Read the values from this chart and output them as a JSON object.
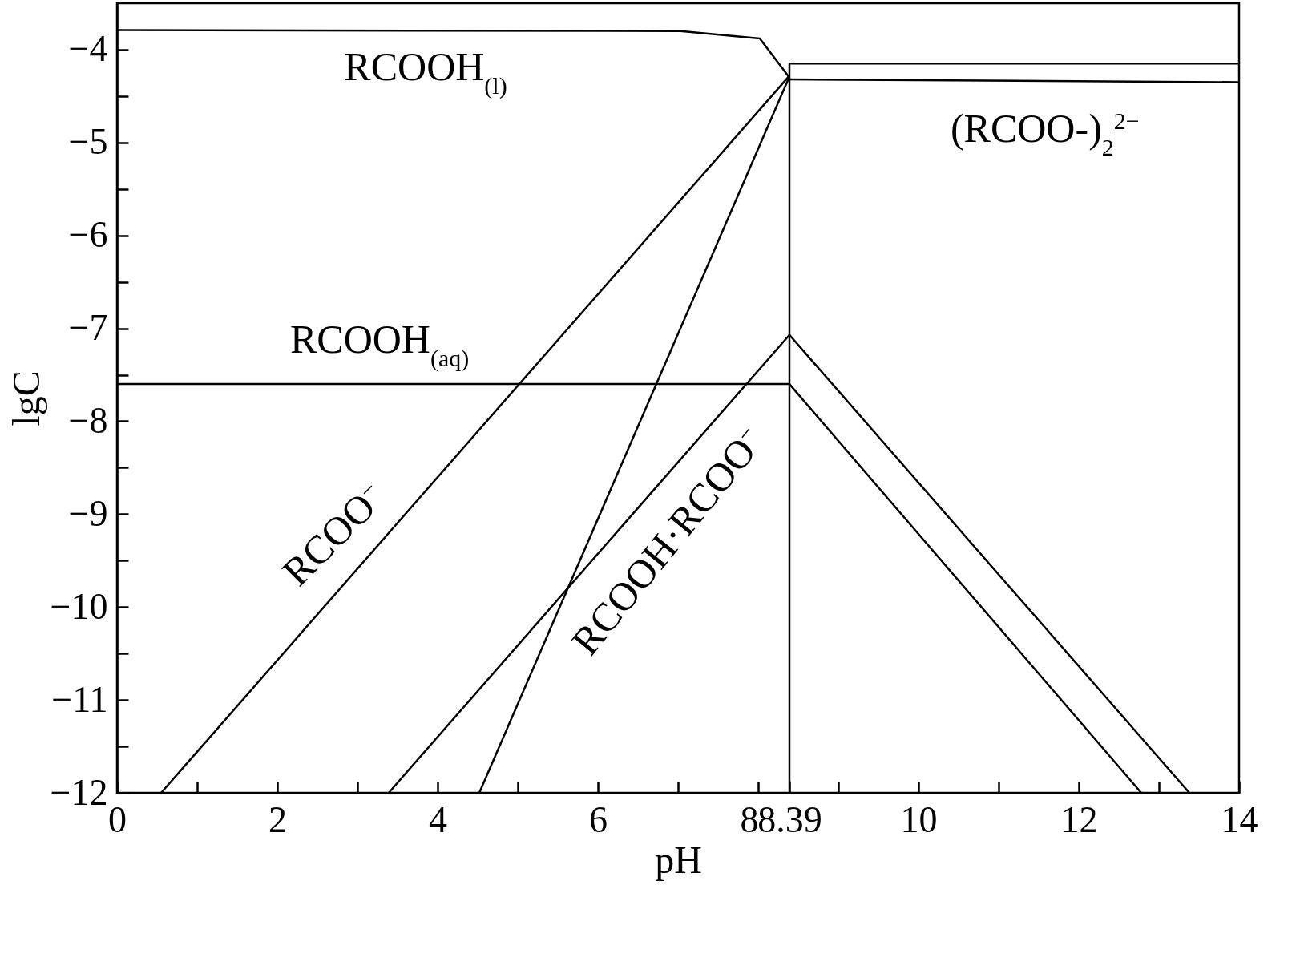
{
  "chart_data": {
    "type": "line",
    "xlabel": "pH",
    "ylabel": "lgC",
    "xlim": [
      0,
      14
    ],
    "ylim": [
      -12,
      -3.5
    ],
    "xticks": [
      0,
      {
        "value": 1,
        "label": null
      },
      2,
      {
        "value": 3,
        "label": null
      },
      4,
      {
        "value": 5,
        "label": null
      },
      6,
      {
        "value": 7,
        "label": null
      },
      8,
      8.39,
      {
        "value": 9,
        "label": null
      },
      10,
      {
        "value": 11,
        "label": null
      },
      12,
      {
        "value": 13,
        "label": null
      },
      14
    ],
    "yticks": [
      {
        "value": -12,
        "label": "−12"
      },
      {
        "value": -11.5,
        "label": null
      },
      {
        "value": -11,
        "label": "−11"
      },
      {
        "value": -10.5,
        "label": null
      },
      {
        "value": -10,
        "label": "−10"
      },
      {
        "value": -9.5,
        "label": null
      },
      {
        "value": -9,
        "label": "−9"
      },
      {
        "value": -8.5,
        "label": null
      },
      {
        "value": -8,
        "label": "−8"
      },
      {
        "value": -7.5,
        "label": null
      },
      {
        "value": -7,
        "label": "−7"
      },
      {
        "value": -6.5,
        "label": null
      },
      {
        "value": -6,
        "label": "−6"
      },
      {
        "value": -5.5,
        "label": null
      },
      {
        "value": -5,
        "label": "−5"
      },
      {
        "value": -4.5,
        "label": null
      },
      {
        "value": -4,
        "label": "−4"
      }
    ],
    "series": [
      {
        "color": "#000000",
        "x": [
          0,
          7.03,
          8.02,
          8.39
        ],
        "values": [
          -3.79,
          -3.8,
          -3.88,
          -4.3
        ]
      },
      {
        "color": "#000000",
        "x": [
          8.39,
          14
        ],
        "values": [
          -4.15,
          -4.15
        ]
      },
      {
        "color": "#000000",
        "x": [
          8.39,
          14
        ],
        "values": [
          -4.32,
          -4.35
        ]
      },
      {
        "color": "#000000",
        "x": [
          8.39,
          8.39
        ],
        "values": [
          -12,
          -4.15
        ]
      },
      {
        "color": "#000000",
        "x": [
          0.55,
          8.39
        ],
        "values": [
          -12,
          -4.28
        ]
      },
      {
        "color": "#000000",
        "x": [
          4.52,
          8.39
        ],
        "values": [
          -12,
          -4.29
        ]
      },
      {
        "color": "#000000",
        "x": [
          0,
          8.39,
          12.78
        ],
        "values": [
          -7.6,
          -7.6,
          -12
        ]
      },
      {
        "color": "#000000",
        "x": [
          3.39,
          8.39,
          13.38
        ],
        "values": [
          -12,
          -7.07,
          -12
        ]
      }
    ],
    "annotations": [
      "RCOOH$_{(l)}$",
      "RCOOH$_{(aq)}$",
      "(RCOO-)$_{2}$$^{2−}$",
      "RCOO$^{−}$",
      "RCOOH·RCOO$^{−}$"
    ],
    "grid": false,
    "legend": false,
    "line_style": "solid",
    "marker": "none"
  }
}
